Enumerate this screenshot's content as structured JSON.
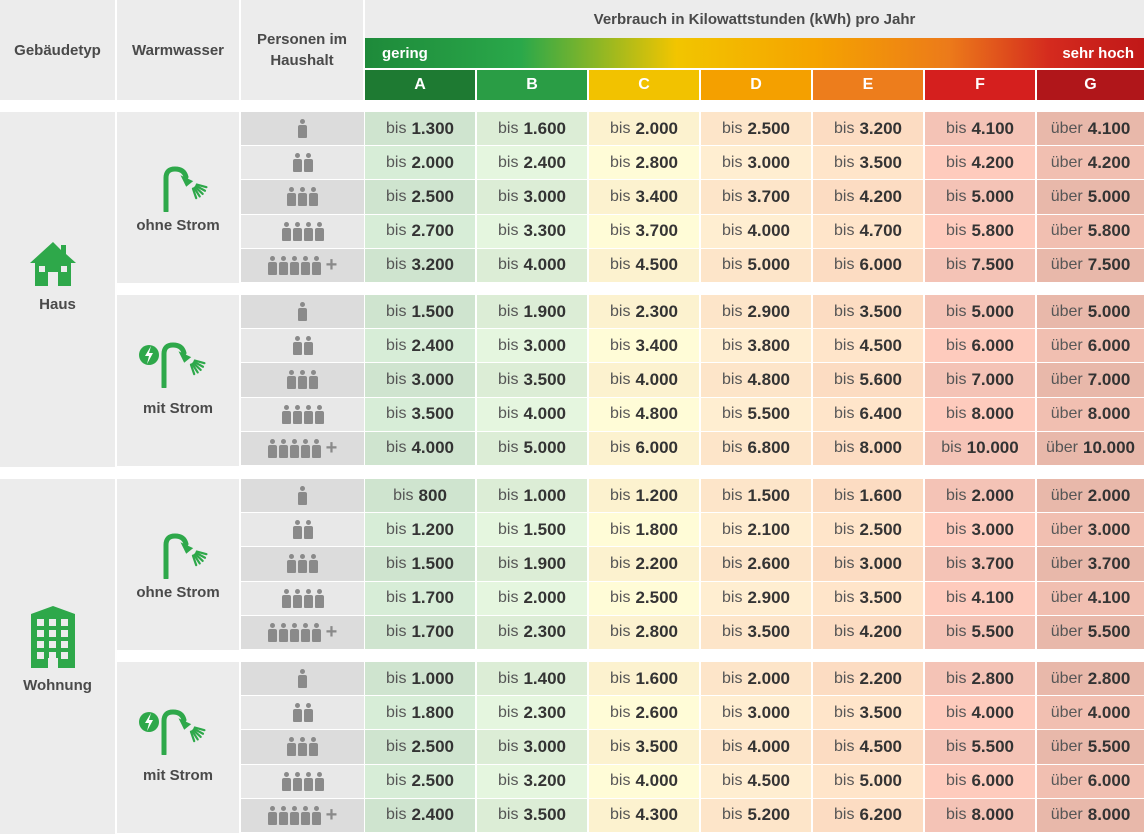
{
  "headers": {
    "building": "Gebäudetyp",
    "water": "Warmwasser",
    "persons": "Personen im Haushalt",
    "consumption": "Verbrauch in Kilowattstunden (kWh) pro Jahr",
    "low": "gering",
    "high": "sehr hoch"
  },
  "classes": [
    "A",
    "B",
    "C",
    "D",
    "E",
    "F",
    "G"
  ],
  "colors": {
    "A": "#1e7a32",
    "B": "#2a9d45",
    "C": "#f2c200",
    "D": "#f4a000",
    "E": "#ed7d1c",
    "F": "#d51f1e",
    "G": "#b0161a",
    "cellA": "#cfe4cf",
    "cellB": "#dcedd6",
    "cellC": "#fcf2cf",
    "cellD": "#fde5c9",
    "cellE": "#fcdcc2",
    "cellF": "#f4c3b6",
    "cellG": "#e8b8aa",
    "green_icon": "#2ea84a"
  },
  "buildings": [
    {
      "name": "Haus",
      "icon": "house-icon",
      "groups": [
        {
          "water": "ohne Strom",
          "icon": "shower-icon",
          "rows": [
            [
              "bis|1.300",
              "bis|1.600",
              "bis|2.000",
              "bis|2.500",
              "bis|3.200",
              "bis|4.100",
              "über|4.100"
            ],
            [
              "bis|2.000",
              "bis|2.400",
              "bis|2.800",
              "bis|3.000",
              "bis|3.500",
              "bis|4.200",
              "über|4.200"
            ],
            [
              "bis|2.500",
              "bis|3.000",
              "bis|3.400",
              "bis|3.700",
              "bis|4.200",
              "bis|5.000",
              "über|5.000"
            ],
            [
              "bis|2.700",
              "bis|3.300",
              "bis|3.700",
              "bis|4.000",
              "bis|4.700",
              "bis|5.800",
              "über|5.800"
            ],
            [
              "bis|3.200",
              "bis|4.000",
              "bis|4.500",
              "bis|5.000",
              "bis|6.000",
              "bis|7.500",
              "über|7.500"
            ]
          ]
        },
        {
          "water": "mit Strom",
          "icon": "electric-shower-icon",
          "rows": [
            [
              "bis|1.500",
              "bis|1.900",
              "bis|2.300",
              "bis|2.900",
              "bis|3.500",
              "bis|5.000",
              "über|5.000"
            ],
            [
              "bis|2.400",
              "bis|3.000",
              "bis|3.400",
              "bis|3.800",
              "bis|4.500",
              "bis|6.000",
              "über|6.000"
            ],
            [
              "bis|3.000",
              "bis|3.500",
              "bis|4.000",
              "bis|4.800",
              "bis|5.600",
              "bis|7.000",
              "über|7.000"
            ],
            [
              "bis|3.500",
              "bis|4.000",
              "bis|4.800",
              "bis|5.500",
              "bis|6.400",
              "bis|8.000",
              "über|8.000"
            ],
            [
              "bis|4.000",
              "bis|5.000",
              "bis|6.000",
              "bis|6.800",
              "bis|8.000",
              "bis|10.000",
              "über|10.000"
            ]
          ]
        }
      ]
    },
    {
      "name": "Wohnung",
      "icon": "apartment-building-icon",
      "groups": [
        {
          "water": "ohne Strom",
          "icon": "shower-icon",
          "rows": [
            [
              "bis|800",
              "bis|1.000",
              "bis|1.200",
              "bis|1.500",
              "bis|1.600",
              "bis|2.000",
              "über|2.000"
            ],
            [
              "bis|1.200",
              "bis|1.500",
              "bis|1.800",
              "bis|2.100",
              "bis|2.500",
              "bis|3.000",
              "über|3.000"
            ],
            [
              "bis|1.500",
              "bis|1.900",
              "bis|2.200",
              "bis|2.600",
              "bis|3.000",
              "bis|3.700",
              "über|3.700"
            ],
            [
              "bis|1.700",
              "bis|2.000",
              "bis|2.500",
              "bis|2.900",
              "bis|3.500",
              "bis|4.100",
              "über|4.100"
            ],
            [
              "bis|1.700",
              "bis|2.300",
              "bis|2.800",
              "bis|3.500",
              "bis|4.200",
              "bis|5.500",
              "über|5.500"
            ]
          ]
        },
        {
          "water": "mit Strom",
          "icon": "electric-shower-icon",
          "rows": [
            [
              "bis|1.000",
              "bis|1.400",
              "bis|1.600",
              "bis|2.000",
              "bis|2.200",
              "bis|2.800",
              "über|2.800"
            ],
            [
              "bis|1.800",
              "bis|2.300",
              "bis|2.600",
              "bis|3.000",
              "bis|3.500",
              "bis|4.000",
              "über|4.000"
            ],
            [
              "bis|2.500",
              "bis|3.000",
              "bis|3.500",
              "bis|4.000",
              "bis|4.500",
              "bis|5.500",
              "über|5.500"
            ],
            [
              "bis|2.500",
              "bis|3.200",
              "bis|4.000",
              "bis|4.500",
              "bis|5.000",
              "bis|6.000",
              "über|6.000"
            ],
            [
              "bis|2.400",
              "bis|3.500",
              "bis|4.300",
              "bis|5.200",
              "bis|6.200",
              "bis|8.000",
              "über|8.000"
            ]
          ]
        }
      ]
    }
  ],
  "persons": [
    1,
    2,
    3,
    4,
    5
  ],
  "persons_plus": "+"
}
